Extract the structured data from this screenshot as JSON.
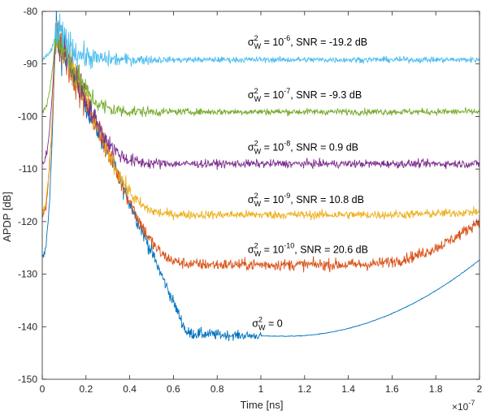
{
  "chart_data": {
    "type": "line",
    "title": "",
    "xlabel": "Time [ns]",
    "ylabel": "APDP [dB]",
    "xlim": [
      0,
      2e-07
    ],
    "ylim": [
      -150,
      -80
    ],
    "x_multiplier_label": "×10",
    "x_multiplier_exponent": "-7",
    "x_ticks": [
      0,
      0.2,
      0.4,
      0.6,
      0.8,
      1,
      1.2,
      1.4,
      1.6,
      1.8,
      2
    ],
    "x_tick_labels": [
      "0",
      "0.2",
      "0.4",
      "0.6",
      "0.8",
      "1",
      "1.2",
      "1.4",
      "1.6",
      "1.8",
      "2"
    ],
    "y_ticks": [
      -150,
      -140,
      -130,
      -120,
      -110,
      -100,
      -90,
      -80
    ],
    "y_tick_labels": [
      "-150",
      "-140",
      "-130",
      "-120",
      "-110",
      "-100",
      "-90",
      "-80"
    ],
    "grid": false,
    "legend": "none",
    "series": [
      {
        "color": "#0072BD",
        "floor": -141.8,
        "edge_rise": 14.5,
        "noise": 0.8,
        "peak_start": -127
      },
      {
        "color": "#D95319",
        "floor": -128.2,
        "edge_rise": 8.5,
        "noise": 0.8,
        "peak_start": -119
      },
      {
        "color": "#EDB120",
        "floor": -118.7,
        "edge_rise": 0.6,
        "noise": 0.6,
        "peak_start": -118
      },
      {
        "color": "#7E2F8E",
        "floor": -109.0,
        "edge_rise": 0.0,
        "noise": 0.55,
        "peak_start": -109
      },
      {
        "color": "#77AC30",
        "floor": -99.1,
        "edge_rise": 0.0,
        "noise": 0.45,
        "peak_start": -99
      },
      {
        "color": "#4DBEEE",
        "floor": -89.2,
        "edge_rise": 0.0,
        "noise": 0.4,
        "peak_start": -89
      }
    ],
    "annotations": [
      {
        "sigma": "σ",
        "sup": "2",
        "sub": "W",
        "text": " = 10",
        "exp": "-6",
        "rest": ", SNR = -19.2 dB",
        "x": 9.4e-08,
        "y": -86.5
      },
      {
        "sigma": "σ",
        "sup": "2",
        "sub": "W",
        "text": " = 10",
        "exp": "-7",
        "rest": ", SNR = -9.3 dB",
        "x": 9.4e-08,
        "y": -96.5
      },
      {
        "sigma": "σ",
        "sup": "2",
        "sub": "W",
        "text": " = 10",
        "exp": "-8",
        "rest": ", SNR = 0.9 dB",
        "x": 9.4e-08,
        "y": -106.5
      },
      {
        "sigma": "σ",
        "sup": "2",
        "sub": "W",
        "text": " = 10",
        "exp": "-9",
        "rest": ", SNR = 10.8 dB",
        "x": 9.4e-08,
        "y": -116.5
      },
      {
        "sigma": "σ",
        "sup": "2",
        "sub": "W",
        "text": " = 10",
        "exp": "-10",
        "rest": ", SNR = 20.6 dB",
        "x": 9.4e-08,
        "y": -126.0
      },
      {
        "sigma": "σ",
        "sup": "2",
        "sub": "W",
        "text": " = 0",
        "exp": "",
        "rest": "",
        "x": 9.6e-08,
        "y": -140.0
      }
    ]
  }
}
